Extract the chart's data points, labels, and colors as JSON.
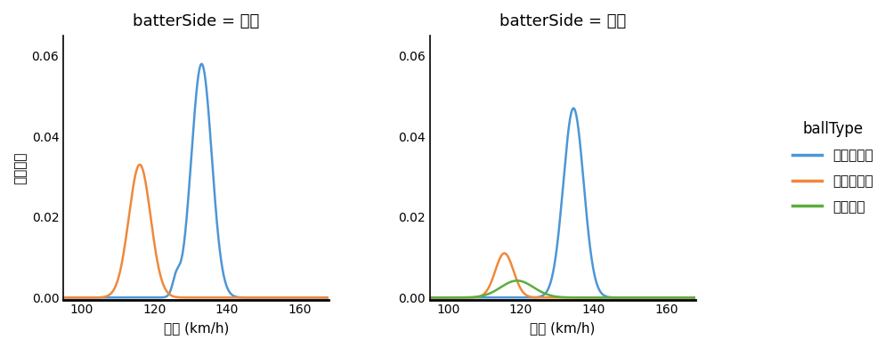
{
  "panels": [
    {
      "title": "batterSide = 右打",
      "curves": [
        {
          "label": "ストレート",
          "color": "#4C96D7",
          "components": [
            {
              "mean": 133.0,
              "std": 2.8,
              "amp": 0.058
            },
            {
              "mean": 126.0,
              "std": 1.0,
              "amp": 0.004
            }
          ]
        },
        {
          "label": "スライダー",
          "color": "#F0883A",
          "components": [
            {
              "mean": 116.0,
              "std": 3.0,
              "amp": 0.033
            }
          ]
        }
      ]
    },
    {
      "title": "batterSide = 左打",
      "curves": [
        {
          "label": "ストレート",
          "color": "#4C96D7",
          "components": [
            {
              "mean": 134.5,
              "std": 2.8,
              "amp": 0.047
            }
          ]
        },
        {
          "label": "スライダー",
          "color": "#F0883A",
          "components": [
            {
              "mean": 115.5,
              "std": 2.5,
              "amp": 0.011
            }
          ]
        },
        {
          "label": "シンカー",
          "color": "#5DAD3C",
          "components": [
            {
              "mean": 119.0,
              "std": 4.5,
              "amp": 0.0042
            }
          ]
        }
      ]
    }
  ],
  "legend_entries": [
    {
      "label": "ストレート",
      "color": "#4C96D7"
    },
    {
      "label": "スライダー",
      "color": "#F0883A"
    },
    {
      "label": "シンカー",
      "color": "#5DAD3C"
    }
  ],
  "xlabel": "球速 (km/h)",
  "ylabel": "確率密度",
  "xlim": [
    95,
    168
  ],
  "ylim": [
    -0.0005,
    0.065
  ],
  "yticks": [
    0.0,
    0.02,
    0.04,
    0.06
  ],
  "xticks": [
    100,
    120,
    140,
    160
  ],
  "background_color": "#FFFFFF",
  "legend_title": "ballType",
  "linewidth": 1.8
}
